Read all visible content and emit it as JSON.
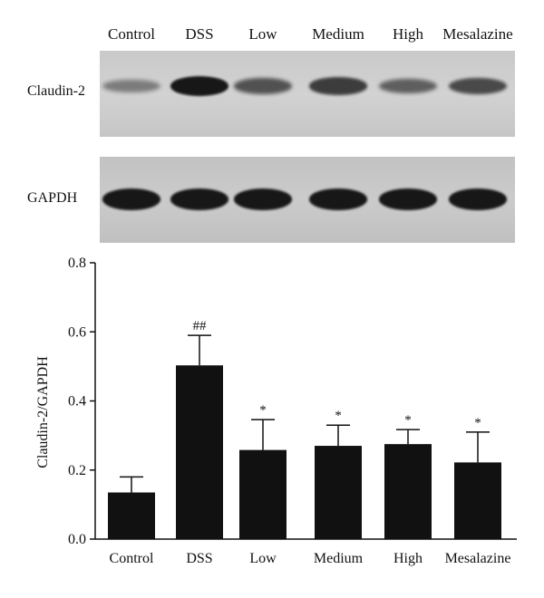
{
  "blot": {
    "lanes": [
      "Control",
      "DSS",
      "Low",
      "Medium",
      "High",
      "Mesalazine"
    ],
    "rows": [
      {
        "label": "Claudin-2",
        "band_intensity": [
          0.25,
          0.95,
          0.55,
          0.7,
          0.45,
          0.6
        ]
      },
      {
        "label": "GAPDH",
        "band_intensity": [
          0.95,
          0.95,
          0.95,
          0.95,
          0.95,
          0.95
        ]
      }
    ],
    "band_color": "#101010"
  },
  "chart_data": {
    "type": "bar",
    "categories": [
      "Control",
      "DSS",
      "Low",
      "Medium",
      "High",
      "Mesalazine"
    ],
    "values": [
      0.135,
      0.503,
      0.258,
      0.27,
      0.275,
      0.222
    ],
    "errors": [
      0.045,
      0.087,
      0.088,
      0.06,
      0.042,
      0.088
    ],
    "annotations": [
      "",
      "##",
      "*",
      "*",
      "*",
      "*"
    ],
    "ylabel": "Claudin-2/GAPDH",
    "ylim": [
      0,
      0.8
    ],
    "yticks": [
      "0.0",
      "0.2",
      "0.4",
      "0.6",
      "0.8"
    ],
    "bar_color": "#111111",
    "grid": false
  }
}
